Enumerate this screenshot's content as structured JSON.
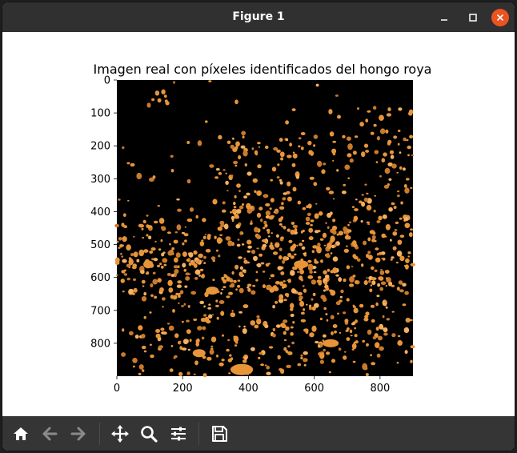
{
  "window": {
    "title": "Figure 1"
  },
  "figure": {
    "title": "Imagen real con píxeles identificados del hongo roya",
    "x_ticks": [
      "0",
      "200",
      "400",
      "600",
      "800"
    ],
    "y_ticks": [
      "0",
      "100",
      "200",
      "300",
      "400",
      "500",
      "600",
      "700",
      "800"
    ],
    "background_color": "#000000",
    "pixel_color": "#e8953a"
  },
  "chart_data": {
    "type": "heatmap",
    "title": "Imagen real con píxeles identificados del hongo roya",
    "xlabel": "",
    "ylabel": "",
    "xlim": [
      0,
      900
    ],
    "ylim": [
      900,
      0
    ],
    "x_ticks": [
      0,
      200,
      400,
      600,
      800
    ],
    "y_ticks": [
      0,
      100,
      200,
      300,
      400,
      500,
      600,
      700,
      800
    ],
    "colors": {
      "background": "#000000",
      "rust_pixels": "#e8953a"
    }
  },
  "toolbar": {
    "items": [
      {
        "icon": "home-icon",
        "enabled": true
      },
      {
        "icon": "back-arrow-icon",
        "enabled": false
      },
      {
        "icon": "forward-arrow-icon",
        "enabled": false
      },
      {
        "icon": "pan-move-icon",
        "enabled": true
      },
      {
        "icon": "zoom-magnifier-icon",
        "enabled": true
      },
      {
        "icon": "configure-subplots-icon",
        "enabled": true
      },
      {
        "icon": "save-floppy-icon",
        "enabled": true
      }
    ]
  }
}
